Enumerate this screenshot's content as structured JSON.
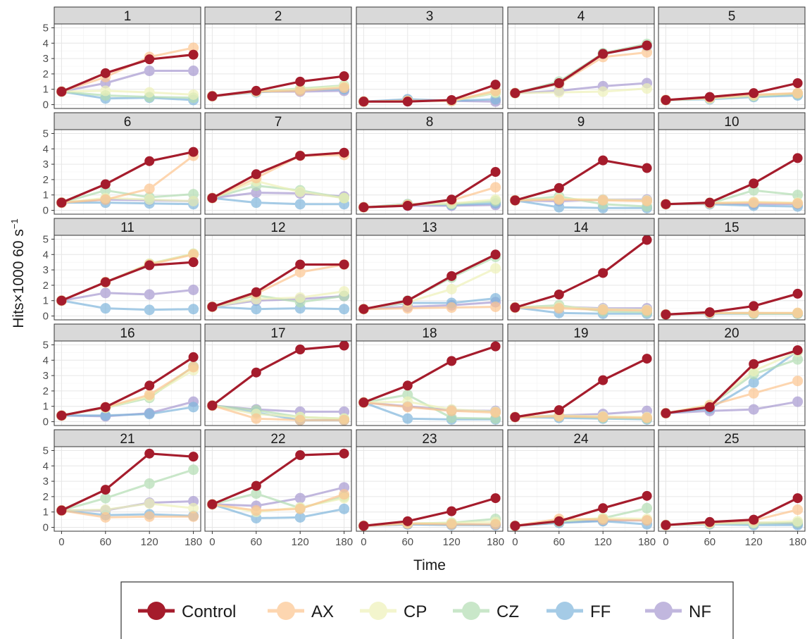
{
  "chart_data": {
    "type": "line",
    "facet_layout": {
      "rows": 5,
      "cols": 5
    },
    "xlabel": "Time",
    "ylabel": "Hits×1000 60 s",
    "ylabel_superscript": "−1",
    "x": [
      0,
      60,
      120,
      180
    ],
    "x_ticks": [
      0,
      60,
      120,
      180
    ],
    "y_ticks": [
      0,
      1,
      2,
      3,
      4,
      5
    ],
    "xlim": [
      -10,
      190
    ],
    "ylim": [
      -0.25,
      5.25
    ],
    "grid": true,
    "legend_position": "bottom",
    "legend": [
      {
        "name": "Control",
        "color": "#a51c2c"
      },
      {
        "name": "AX",
        "color": "#fdc58f"
      },
      {
        "name": "CP",
        "color": "#eef2b8"
      },
      {
        "name": "CZ",
        "color": "#b3ddb3"
      },
      {
        "name": "FF",
        "color": "#7fb6dc"
      },
      {
        "name": "NF",
        "color": "#a89ad1"
      }
    ],
    "panels": [
      {
        "title": "1",
        "series": {
          "Control": [
            0.85,
            2.05,
            2.95,
            3.25
          ],
          "AX": [
            0.85,
            1.8,
            3.1,
            3.7
          ],
          "CP": [
            0.85,
            0.9,
            0.8,
            0.65
          ],
          "CZ": [
            0.85,
            0.6,
            0.5,
            0.45
          ],
          "FF": [
            0.85,
            0.4,
            0.45,
            0.3
          ],
          "NF": [
            0.85,
            1.4,
            2.2,
            2.2
          ]
        }
      },
      {
        "title": "2",
        "series": {
          "Control": [
            0.55,
            0.9,
            1.5,
            1.85
          ],
          "AX": [
            0.55,
            0.85,
            0.9,
            1.1
          ],
          "CP": [
            0.55,
            0.85,
            1.0,
            1.2
          ],
          "CZ": [
            0.55,
            0.85,
            1.05,
            1.25
          ],
          "FF": [
            0.55,
            0.8,
            0.95,
            1.0
          ],
          "NF": [
            0.55,
            0.85,
            0.85,
            0.9
          ]
        }
      },
      {
        "title": "3",
        "series": {
          "Control": [
            0.2,
            0.2,
            0.3,
            1.3
          ],
          "AX": [
            0.2,
            0.25,
            0.25,
            0.9
          ],
          "CP": [
            0.2,
            0.25,
            0.25,
            0.8
          ],
          "CZ": [
            0.2,
            0.25,
            0.25,
            0.75
          ],
          "FF": [
            0.2,
            0.35,
            0.25,
            0.35
          ],
          "NF": [
            0.2,
            0.3,
            0.25,
            0.2
          ]
        }
      },
      {
        "title": "4",
        "series": {
          "Control": [
            0.75,
            1.4,
            3.3,
            3.85
          ],
          "AX": [
            0.75,
            1.35,
            3.1,
            3.4
          ],
          "CP": [
            0.75,
            0.8,
            0.85,
            1.05
          ],
          "CZ": [
            0.75,
            1.5,
            3.35,
            3.95
          ],
          "FF": [
            0.75,
            1.35,
            3.3,
            3.8
          ],
          "NF": [
            0.75,
            0.9,
            1.2,
            1.4
          ]
        }
      },
      {
        "title": "5",
        "series": {
          "Control": [
            0.3,
            0.5,
            0.75,
            1.4
          ],
          "AX": [
            0.3,
            0.45,
            0.65,
            0.75
          ],
          "CP": [
            0.3,
            0.4,
            0.6,
            0.75
          ],
          "CZ": [
            0.3,
            0.4,
            0.55,
            0.7
          ],
          "FF": [
            0.3,
            0.35,
            0.5,
            0.6
          ],
          "NF": [
            0.3,
            0.4,
            0.6,
            0.7
          ]
        }
      },
      {
        "title": "6",
        "series": {
          "Control": [
            0.5,
            1.7,
            3.2,
            3.8
          ],
          "AX": [
            0.5,
            0.7,
            1.4,
            3.55
          ],
          "CP": [
            0.5,
            0.8,
            0.7,
            0.6
          ],
          "CZ": [
            0.5,
            1.3,
            0.85,
            1.05
          ],
          "FF": [
            0.5,
            0.5,
            0.45,
            0.4
          ],
          "NF": [
            0.5,
            0.7,
            0.65,
            0.6
          ]
        }
      },
      {
        "title": "7",
        "series": {
          "Control": [
            0.8,
            2.35,
            3.55,
            3.75
          ],
          "AX": [
            0.8,
            2.1,
            3.55,
            3.6
          ],
          "CP": [
            0.8,
            1.9,
            1.2,
            0.8
          ],
          "CZ": [
            0.8,
            1.6,
            1.3,
            0.8
          ],
          "FF": [
            0.8,
            0.5,
            0.4,
            0.4
          ],
          "NF": [
            0.8,
            1.15,
            1.1,
            0.9
          ]
        }
      },
      {
        "title": "8",
        "series": {
          "Control": [
            0.2,
            0.3,
            0.7,
            2.5
          ],
          "AX": [
            0.2,
            0.35,
            0.65,
            1.5
          ],
          "CP": [
            0.2,
            0.35,
            0.45,
            0.7
          ],
          "CZ": [
            0.2,
            0.4,
            0.4,
            0.6
          ],
          "FF": [
            0.2,
            0.4,
            0.35,
            0.45
          ],
          "NF": [
            0.2,
            0.3,
            0.3,
            0.35
          ]
        }
      },
      {
        "title": "9",
        "series": {
          "Control": [
            0.65,
            1.45,
            3.25,
            2.75
          ],
          "AX": [
            0.65,
            0.7,
            0.65,
            0.6
          ],
          "CP": [
            0.65,
            0.75,
            0.7,
            0.65
          ],
          "CZ": [
            0.65,
            0.9,
            0.4,
            0.25
          ],
          "FF": [
            0.65,
            0.2,
            0.15,
            0.15
          ],
          "NF": [
            0.65,
            0.6,
            0.7,
            0.7
          ]
        }
      },
      {
        "title": "10",
        "series": {
          "Control": [
            0.4,
            0.5,
            1.75,
            3.4
          ],
          "AX": [
            0.4,
            0.45,
            0.5,
            0.45
          ],
          "CP": [
            0.4,
            0.5,
            0.55,
            0.5
          ],
          "CZ": [
            0.4,
            0.45,
            1.3,
            1.0
          ],
          "FF": [
            0.4,
            0.4,
            0.3,
            0.25
          ],
          "NF": [
            0.4,
            0.45,
            0.4,
            0.4
          ]
        }
      },
      {
        "title": "11",
        "series": {
          "Control": [
            1.0,
            2.2,
            3.3,
            3.5
          ],
          "AX": [
            1.0,
            2.2,
            3.35,
            4.0
          ],
          "CP": [
            1.0,
            2.2,
            3.4,
            4.05
          ],
          "CZ": [
            1.0,
            2.2,
            3.4,
            4.05
          ],
          "FF": [
            1.0,
            0.5,
            0.4,
            0.45
          ],
          "NF": [
            1.0,
            1.5,
            1.4,
            1.7
          ]
        }
      },
      {
        "title": "12",
        "series": {
          "Control": [
            0.6,
            1.55,
            3.35,
            3.35
          ],
          "AX": [
            0.6,
            1.45,
            2.85,
            3.35
          ],
          "CP": [
            0.6,
            1.1,
            1.2,
            1.6
          ],
          "CZ": [
            0.6,
            1.35,
            0.9,
            1.3
          ],
          "FF": [
            0.6,
            0.45,
            0.5,
            0.45
          ],
          "NF": [
            0.6,
            1.0,
            1.1,
            1.3
          ]
        }
      },
      {
        "title": "13",
        "series": {
          "Control": [
            0.45,
            1.0,
            2.6,
            4.0
          ],
          "AX": [
            0.45,
            0.5,
            0.55,
            0.6
          ],
          "CP": [
            0.45,
            0.9,
            1.75,
            3.1
          ],
          "CZ": [
            0.45,
            1.0,
            2.5,
            3.85
          ],
          "FF": [
            0.45,
            0.85,
            0.85,
            1.15
          ],
          "NF": [
            0.45,
            0.6,
            0.7,
            0.9
          ]
        }
      },
      {
        "title": "14",
        "series": {
          "Control": [
            0.55,
            1.4,
            2.8,
            4.95
          ],
          "AX": [
            0.55,
            0.5,
            0.4,
            0.35
          ],
          "CP": [
            0.55,
            0.6,
            0.45,
            0.4
          ],
          "CZ": [
            0.55,
            0.7,
            0.3,
            0.25
          ],
          "FF": [
            0.55,
            0.2,
            0.15,
            0.15
          ],
          "NF": [
            0.55,
            0.6,
            0.5,
            0.5
          ]
        }
      },
      {
        "title": "15",
        "series": {
          "Control": [
            0.1,
            0.25,
            0.65,
            1.45
          ],
          "AX": [
            0.1,
            0.2,
            0.2,
            0.2
          ],
          "CP": [
            0.1,
            0.2,
            0.2,
            0.2
          ],
          "CZ": [
            0.1,
            0.2,
            0.15,
            0.15
          ],
          "FF": [
            0.1,
            0.15,
            0.15,
            0.15
          ],
          "NF": [
            0.1,
            0.2,
            0.2,
            0.15
          ]
        }
      },
      {
        "title": "16",
        "series": {
          "Control": [
            0.4,
            0.95,
            2.35,
            4.2
          ],
          "AX": [
            0.4,
            0.95,
            1.75,
            3.55
          ],
          "CP": [
            0.4,
            0.9,
            1.65,
            3.35
          ],
          "CZ": [
            0.4,
            0.9,
            1.55,
            3.6
          ],
          "FF": [
            0.4,
            0.4,
            0.5,
            0.95
          ],
          "NF": [
            0.4,
            0.35,
            0.55,
            1.3
          ]
        }
      },
      {
        "title": "17",
        "series": {
          "Control": [
            1.05,
            3.2,
            4.7,
            4.95
          ],
          "AX": [
            1.05,
            0.2,
            0.1,
            0.1
          ],
          "CP": [
            1.05,
            0.5,
            0.3,
            0.2
          ],
          "CZ": [
            1.05,
            0.75,
            0.3,
            0.2
          ],
          "FF": [
            1.05,
            0.6,
            0.1,
            0.1
          ],
          "NF": [
            1.05,
            0.8,
            0.65,
            0.65
          ]
        }
      },
      {
        "title": "18",
        "series": {
          "Control": [
            1.25,
            2.35,
            3.95,
            4.9
          ],
          "AX": [
            1.25,
            0.95,
            0.7,
            0.6
          ],
          "CP": [
            1.25,
            1.3,
            0.8,
            0.65
          ],
          "CZ": [
            1.25,
            1.75,
            0.25,
            0.2
          ],
          "FF": [
            1.25,
            0.2,
            0.15,
            0.15
          ],
          "NF": [
            1.25,
            1.0,
            0.75,
            0.7
          ]
        }
      },
      {
        "title": "19",
        "series": {
          "Control": [
            0.3,
            0.75,
            2.7,
            4.1
          ],
          "AX": [
            0.3,
            0.35,
            0.3,
            0.25
          ],
          "CP": [
            0.3,
            0.4,
            0.35,
            0.3
          ],
          "CZ": [
            0.3,
            0.35,
            0.25,
            0.2
          ],
          "FF": [
            0.3,
            0.25,
            0.2,
            0.15
          ],
          "NF": [
            0.3,
            0.4,
            0.5,
            0.7
          ]
        }
      },
      {
        "title": "20",
        "series": {
          "Control": [
            0.55,
            0.95,
            3.75,
            4.65
          ],
          "AX": [
            0.55,
            1.05,
            1.85,
            2.65
          ],
          "CP": [
            0.55,
            1.1,
            3.3,
            4.55
          ],
          "CZ": [
            0.55,
            1.05,
            3.1,
            4.05
          ],
          "FF": [
            0.55,
            0.85,
            2.55,
            4.6
          ],
          "NF": [
            0.55,
            0.7,
            0.8,
            1.3
          ]
        }
      },
      {
        "title": "21",
        "series": {
          "Control": [
            1.1,
            2.45,
            4.8,
            4.6
          ],
          "AX": [
            1.1,
            0.65,
            0.7,
            0.7
          ],
          "CP": [
            1.1,
            1.15,
            1.55,
            1.25
          ],
          "CZ": [
            1.1,
            1.9,
            2.85,
            3.75
          ],
          "FF": [
            1.1,
            0.8,
            0.85,
            0.75
          ],
          "NF": [
            1.1,
            1.1,
            1.6,
            1.7
          ]
        }
      },
      {
        "title": "22",
        "series": {
          "Control": [
            1.5,
            2.7,
            4.7,
            4.8
          ],
          "AX": [
            1.5,
            1.1,
            1.2,
            2.15
          ],
          "CP": [
            1.5,
            1.0,
            1.3,
            1.9
          ],
          "CZ": [
            1.5,
            2.2,
            1.25,
            2.0
          ],
          "FF": [
            1.5,
            0.6,
            0.65,
            1.2
          ],
          "NF": [
            1.5,
            1.4,
            1.9,
            2.6
          ]
        }
      },
      {
        "title": "23",
        "series": {
          "Control": [
            0.1,
            0.4,
            1.05,
            1.9
          ],
          "AX": [
            0.1,
            0.25,
            0.2,
            0.2
          ],
          "CP": [
            0.1,
            0.25,
            0.3,
            0.35
          ],
          "CZ": [
            0.1,
            0.25,
            0.3,
            0.55
          ],
          "FF": [
            0.1,
            0.2,
            0.15,
            0.15
          ],
          "NF": [
            0.1,
            0.2,
            0.2,
            0.15
          ]
        }
      },
      {
        "title": "24",
        "series": {
          "Control": [
            0.1,
            0.4,
            1.25,
            2.05
          ],
          "AX": [
            0.1,
            0.55,
            0.5,
            0.45
          ],
          "CP": [
            0.1,
            0.45,
            0.6,
            0.55
          ],
          "CZ": [
            0.1,
            0.35,
            0.6,
            1.25
          ],
          "FF": [
            0.1,
            0.3,
            0.4,
            0.2
          ],
          "NF": [
            0.1,
            0.3,
            0.45,
            0.45
          ]
        }
      },
      {
        "title": "25",
        "series": {
          "Control": [
            0.15,
            0.35,
            0.5,
            1.9
          ],
          "AX": [
            0.15,
            0.3,
            0.45,
            1.15
          ],
          "CP": [
            0.15,
            0.25,
            0.3,
            0.4
          ],
          "CZ": [
            0.15,
            0.25,
            0.25,
            0.3
          ],
          "FF": [
            0.15,
            0.2,
            0.15,
            0.15
          ],
          "NF": [
            0.15,
            0.25,
            0.3,
            0.25
          ]
        }
      }
    ]
  }
}
